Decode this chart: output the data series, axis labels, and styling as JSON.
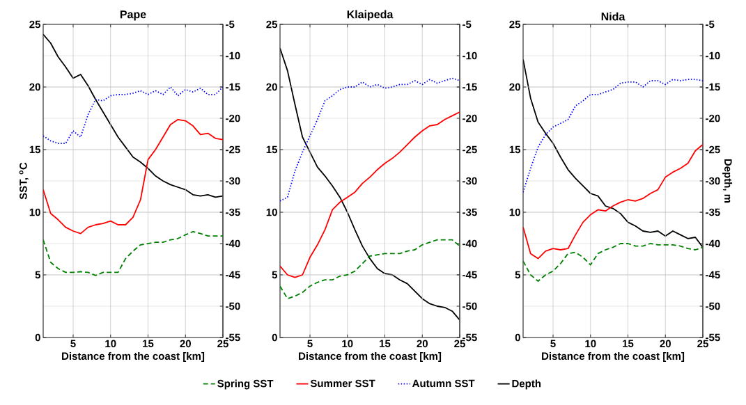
{
  "chart_data": [
    {
      "type": "line",
      "title": "Pape",
      "xlabel": "Distance from the coast [km]",
      "ylabel": "SST, $^{o}$C",
      "x": [
        1,
        2,
        3,
        4,
        5,
        6,
        7,
        8,
        9,
        10,
        11,
        12,
        13,
        14,
        15,
        16,
        17,
        18,
        19,
        20,
        21,
        22,
        23,
        24,
        25
      ],
      "xlim": [
        1,
        25
      ],
      "xticks": [
        5,
        10,
        15,
        20,
        25
      ],
      "ylim": [
        0,
        25
      ],
      "yticks": [
        0,
        5,
        10,
        15,
        20,
        25
      ],
      "y2lim": [
        -55,
        -5
      ],
      "y2ticks": [
        -55,
        -50,
        -45,
        -40,
        -35,
        -30,
        -25,
        -20,
        -15,
        -10,
        -5
      ],
      "grid": true,
      "legend": "bottom",
      "series": [
        {
          "name": "Spring SST",
          "color": "#008000",
          "line_style": "dashed",
          "values": [
            7.8,
            6.0,
            5.5,
            5.2,
            5.2,
            5.25,
            5.2,
            4.95,
            5.2,
            5.2,
            5.2,
            6.3,
            6.9,
            7.4,
            7.5,
            7.6,
            7.6,
            7.8,
            7.9,
            8.2,
            8.45,
            8.3,
            8.1,
            8.1,
            8.1
          ]
        },
        {
          "name": "Summer SST",
          "color": "#ff0000",
          "line_style": "solid",
          "values": [
            11.8,
            9.9,
            9.4,
            8.8,
            8.5,
            8.3,
            8.8,
            9.0,
            9.1,
            9.3,
            9.0,
            9.0,
            9.6,
            11.0,
            14.2,
            15.0,
            16.0,
            17.0,
            17.4,
            17.3,
            16.9,
            16.2,
            16.3,
            15.9,
            15.8
          ]
        },
        {
          "name": "Autumn SST",
          "color": "#0000ff",
          "line_style": "dotted",
          "values": [
            16.1,
            15.7,
            15.5,
            15.5,
            16.5,
            16.0,
            17.8,
            19.0,
            18.9,
            19.3,
            19.4,
            19.4,
            19.5,
            19.7,
            19.4,
            19.7,
            19.4,
            20.0,
            19.3,
            19.8,
            19.6,
            19.9,
            19.4,
            19.4,
            20.0
          ]
        },
        {
          "name": "Depth",
          "color": "#000000",
          "line_style": "solid",
          "axis": "y2",
          "values": [
            -6.6,
            -8,
            -10.2,
            -11.8,
            -13.6,
            -13,
            -14.8,
            -17,
            -19,
            -21,
            -23,
            -24.6,
            -26.2,
            -27,
            -28,
            -29.2,
            -30,
            -30.6,
            -31,
            -31.4,
            -32.2,
            -32.4,
            -32.2,
            -32.6,
            -32.4
          ]
        }
      ]
    },
    {
      "type": "line",
      "title": "Klaipeda",
      "xlabel": "Distance from the coast [km]",
      "x": [
        1,
        2,
        3,
        4,
        5,
        6,
        7,
        8,
        9,
        10,
        11,
        12,
        13,
        14,
        15,
        16,
        17,
        18,
        19,
        20,
        21,
        22,
        23,
        24,
        25
      ],
      "xlim": [
        1,
        25
      ],
      "xticks": [
        5,
        10,
        15,
        20,
        25
      ],
      "ylim": [
        0,
        25
      ],
      "yticks": [
        0,
        5,
        10,
        15,
        20,
        25
      ],
      "y2lim": [
        -55,
        -5
      ],
      "y2ticks": [
        -55,
        -50,
        -45,
        -40,
        -35,
        -30,
        -25,
        -20,
        -15,
        -10,
        -5
      ],
      "grid": true,
      "series": [
        {
          "color": "#008000",
          "line_style": "dashed",
          "values": [
            4.1,
            3.1,
            3.3,
            3.6,
            4.1,
            4.4,
            4.6,
            4.6,
            4.9,
            5.0,
            5.3,
            5.9,
            6.5,
            6.6,
            6.7,
            6.7,
            6.7,
            6.9,
            7.0,
            7.4,
            7.6,
            7.8,
            7.8,
            7.8,
            7.3
          ]
        },
        {
          "color": "#ff0000",
          "line_style": "solid",
          "values": [
            5.7,
            5.0,
            4.8,
            5.0,
            6.4,
            7.4,
            8.6,
            10.2,
            10.8,
            11.2,
            11.6,
            12.3,
            12.8,
            13.4,
            13.9,
            14.3,
            14.8,
            15.4,
            16.0,
            16.5,
            16.9,
            17.0,
            17.4,
            17.7,
            18.0
          ]
        },
        {
          "color": "#0000ff",
          "line_style": "dotted",
          "values": [
            10.9,
            11.2,
            13.3,
            14.8,
            16.1,
            17.4,
            18.9,
            19.3,
            19.8,
            20.0,
            20.0,
            20.4,
            20.0,
            20.2,
            19.9,
            20.0,
            20.2,
            20.2,
            20.5,
            20.2,
            20.6,
            20.3,
            20.5,
            20.7,
            20.5
          ]
        },
        {
          "color": "#000000",
          "line_style": "solid",
          "axis": "y2",
          "values": [
            -8.8,
            -12.4,
            -17.8,
            -23,
            -25.4,
            -27.8,
            -29.2,
            -30.8,
            -32.6,
            -35,
            -37.8,
            -40.4,
            -42.4,
            -44,
            -44.8,
            -45,
            -45.8,
            -46.4,
            -47.6,
            -48.8,
            -49.6,
            -50,
            -50.2,
            -50.8,
            -52.2
          ]
        }
      ]
    },
    {
      "type": "line",
      "title": "Nida",
      "xlabel": "Distance from the coast [km]",
      "y2label": "Depth, m",
      "x": [
        1,
        2,
        3,
        4,
        5,
        6,
        7,
        8,
        9,
        10,
        11,
        12,
        13,
        14,
        15,
        16,
        17,
        18,
        19,
        20,
        21,
        22,
        23,
        24,
        25
      ],
      "xlim": [
        1,
        25
      ],
      "xticks": [
        5,
        10,
        15,
        20,
        25
      ],
      "ylim": [
        0,
        25
      ],
      "yticks": [
        0,
        5,
        10,
        15,
        20,
        25
      ],
      "y2lim": [
        -55,
        -5
      ],
      "y2ticks": [
        -55,
        -50,
        -45,
        -40,
        -35,
        -30,
        -25,
        -20,
        -15,
        -10,
        -5
      ],
      "grid": true,
      "series": [
        {
          "color": "#008000",
          "line_style": "dashed",
          "values": [
            6.1,
            5.0,
            4.5,
            5.0,
            5.3,
            5.9,
            6.7,
            6.8,
            6.4,
            5.8,
            6.7,
            7.0,
            7.2,
            7.5,
            7.5,
            7.3,
            7.3,
            7.5,
            7.4,
            7.4,
            7.4,
            7.3,
            7.1,
            7.0,
            7.2
          ]
        },
        {
          "color": "#ff0000",
          "line_style": "solid",
          "values": [
            8.8,
            6.7,
            6.3,
            6.9,
            7.1,
            7.0,
            7.1,
            8.2,
            9.2,
            9.8,
            10.2,
            10.1,
            10.5,
            10.8,
            11.0,
            10.9,
            11.1,
            11.5,
            11.8,
            12.8,
            13.2,
            13.5,
            13.9,
            14.9,
            15.4
          ]
        },
        {
          "color": "#0000ff",
          "line_style": "dotted",
          "values": [
            11.6,
            13.5,
            15.2,
            16.2,
            16.8,
            17.1,
            17.4,
            18.5,
            18.9,
            19.4,
            19.4,
            19.6,
            19.8,
            20.3,
            20.4,
            20.4,
            20.0,
            20.5,
            20.5,
            20.2,
            20.6,
            20.5,
            20.6,
            20.6,
            20.5
          ]
        },
        {
          "color": "#000000",
          "line_style": "solid",
          "axis": "y2",
          "values": [
            -10.6,
            -16.8,
            -20.6,
            -22.4,
            -24,
            -26.2,
            -28.2,
            -29.6,
            -30.8,
            -32,
            -32.4,
            -34,
            -34.4,
            -35.2,
            -36.6,
            -37.2,
            -38,
            -38.2,
            -38,
            -38.8,
            -38,
            -38.6,
            -39.2,
            -39,
            -40.6
          ]
        }
      ]
    }
  ]
}
